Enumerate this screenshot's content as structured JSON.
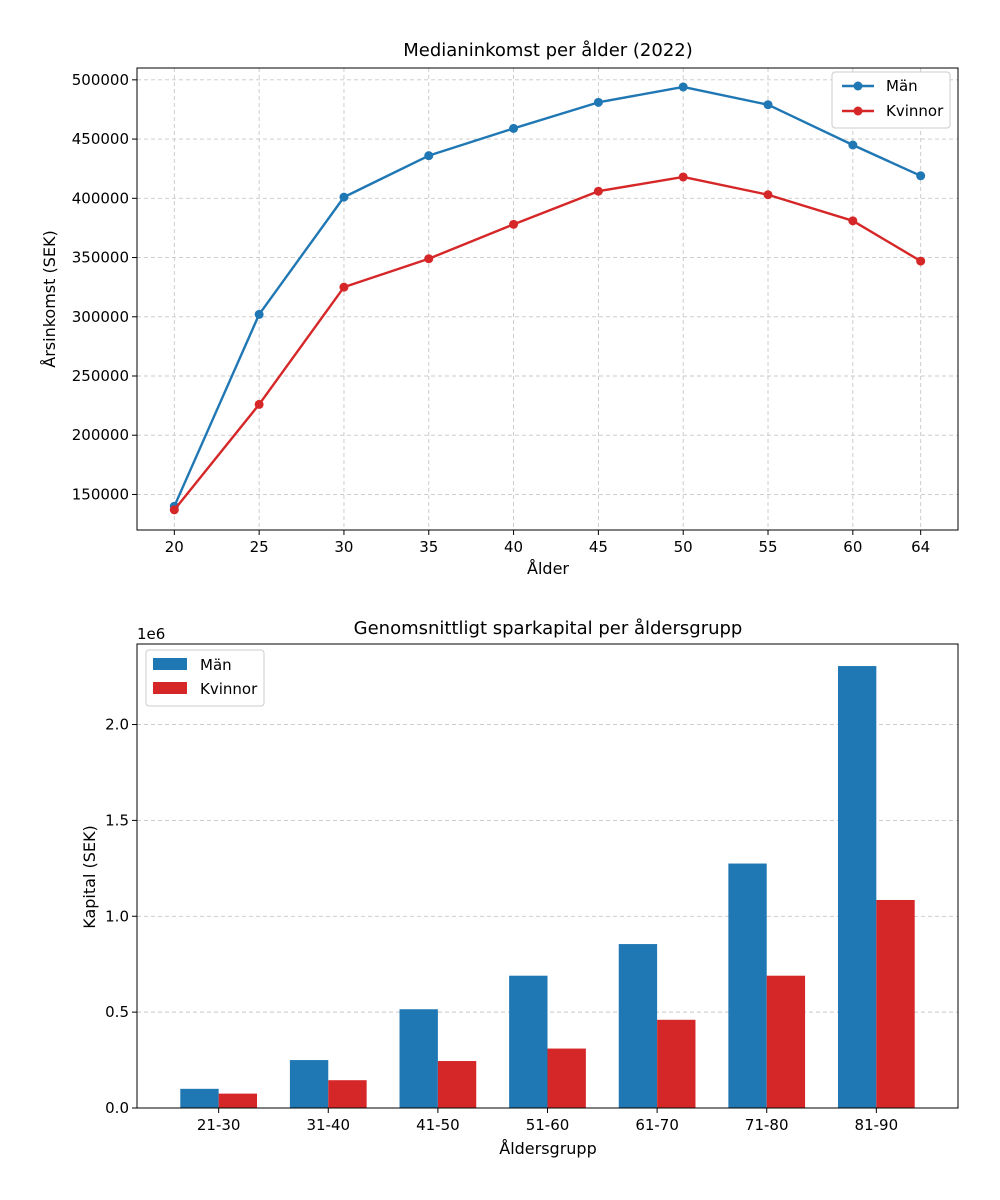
{
  "chart_data": [
    {
      "type": "line",
      "title": "Medianinkomst per ålder (2022)",
      "xlabel": "Ålder",
      "ylabel": "Årsinkomst (SEK)",
      "x": [
        20,
        25,
        30,
        35,
        40,
        45,
        50,
        55,
        60,
        64
      ],
      "x_ticks": [
        "20",
        "25",
        "30",
        "35",
        "40",
        "45",
        "50",
        "55",
        "60",
        "64"
      ],
      "y_ticks": [
        "150000",
        "200000",
        "250000",
        "300000",
        "350000",
        "400000",
        "450000",
        "500000"
      ],
      "ylim": [
        120000,
        510000
      ],
      "grid": true,
      "legend_position": "top-right",
      "series": [
        {
          "name": "Män",
          "color": "#1f77b4",
          "values": [
            140000,
            302000,
            401000,
            436000,
            459000,
            481000,
            494000,
            479000,
            445000,
            419000
          ]
        },
        {
          "name": "Kvinnor",
          "color": "#d62728",
          "values": [
            137000,
            226000,
            325000,
            349000,
            378000,
            406000,
            418000,
            403000,
            381000,
            347000
          ]
        }
      ]
    },
    {
      "type": "bar",
      "title": "Genomsnittligt sparkapital per åldersgrupp",
      "xlabel": "Åldersgrupp",
      "ylabel": "Kapital (SEK)",
      "offset_text": "1e6",
      "categories": [
        "21-30",
        "31-40",
        "41-50",
        "51-60",
        "61-70",
        "71-80",
        "81-90"
      ],
      "y_ticks": [
        "0.0",
        "0.5",
        "1.0",
        "1.5",
        "2.0"
      ],
      "ylim": [
        0,
        2.42
      ],
      "grid": true,
      "legend_position": "top-left",
      "series": [
        {
          "name": "Män",
          "color": "#1f77b4",
          "values": [
            0.1,
            0.25,
            0.515,
            0.69,
            0.855,
            1.275,
            2.305
          ]
        },
        {
          "name": "Kvinnor",
          "color": "#d62728",
          "values": [
            0.075,
            0.145,
            0.245,
            0.31,
            0.46,
            0.69,
            1.085
          ]
        }
      ]
    }
  ]
}
